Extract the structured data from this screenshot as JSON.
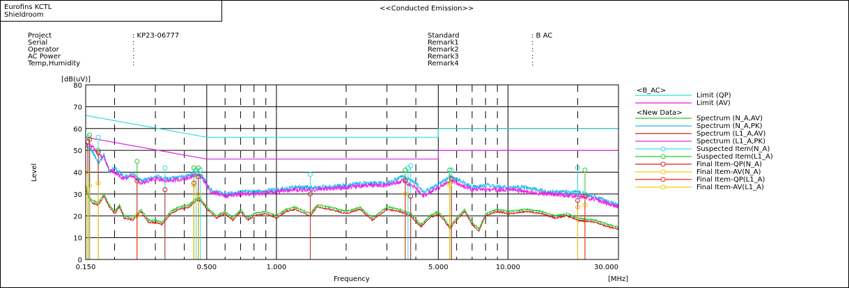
{
  "header": {
    "company": "Eurofins KCTL",
    "room": "Shieldroom",
    "title": "<<Conducted Emission>>"
  },
  "info_left": [
    {
      "label": "Project",
      "value": ": KP23-06777"
    },
    {
      "label": "Serial",
      "value": ":"
    },
    {
      "label": "Operator",
      "value": ":"
    },
    {
      "label": "AC Power",
      "value": ":"
    },
    {
      "label": "Temp,Humidity",
      "value": ":"
    }
  ],
  "info_right": [
    {
      "label": "Standard",
      "value": ": B AC"
    },
    {
      "label": "Remark1",
      "value": ":"
    },
    {
      "label": "Remark2",
      "value": ":"
    },
    {
      "label": "Remark3",
      "value": ":"
    },
    {
      "label": "Remark4",
      "value": ":"
    }
  ],
  "legend": {
    "group1": "<B_AC>",
    "group2": "<New Data>",
    "items": [
      {
        "name": "Limit (QP)",
        "color": "#33dddd",
        "marker": "line"
      },
      {
        "name": "Limit (AV)",
        "color": "#dd22dd",
        "marker": "line"
      },
      {
        "name": "Spectrum (N_A,AV)",
        "color": "#22cc22",
        "marker": "line"
      },
      {
        "name": "Spectrum (N_A,PK)",
        "color": "#22bbee",
        "marker": "line"
      },
      {
        "name": "Spectrum (L1_A,AV)",
        "color": "#cc2222",
        "marker": "line"
      },
      {
        "name": "Spectrum (L1_A,PK)",
        "color": "#ee22ee",
        "marker": "line"
      },
      {
        "name": "Suspected Item(N_A)",
        "color": "#33dddd",
        "marker": "circle"
      },
      {
        "name": "Suspected Item(L1_A)",
        "color": "#22cc22",
        "marker": "circle"
      },
      {
        "name": "Final Item-QP(N_A)",
        "color": "#cc2222",
        "marker": "circle"
      },
      {
        "name": "Final Item-AV(N_A)",
        "color": "#eecc00",
        "marker": "circle"
      },
      {
        "name": "Final Item-QP(L1_A)",
        "color": "#ee2222",
        "marker": "circle"
      },
      {
        "name": "Final Item-AV(L1_A)",
        "color": "#eecc00",
        "marker": "circle"
      }
    ]
  },
  "chart_data": {
    "type": "line",
    "xscale": "log",
    "xlim": [
      0.15,
      30
    ],
    "ylim": [
      0,
      80
    ],
    "xlabel": "Frequency",
    "xunit": "[MHz]",
    "ylabel": "Level",
    "yunit": "[dB(uV)]",
    "x_ticks": [
      {
        "v": 0.15,
        "label": "0.150"
      },
      {
        "v": 0.5,
        "label": "0.500"
      },
      {
        "v": 1,
        "label": "1.000"
      },
      {
        "v": 5,
        "label": "5.000"
      },
      {
        "v": 10,
        "label": "10.000"
      },
      {
        "v": 30,
        "label": "30.000"
      }
    ],
    "y_ticks": [
      0,
      10,
      20,
      30,
      40,
      50,
      60,
      70,
      80
    ],
    "limit_qp": [
      [
        0.15,
        66
      ],
      [
        0.5,
        56
      ],
      [
        5,
        56
      ],
      [
        5,
        60
      ],
      [
        30,
        60
      ]
    ],
    "limit_av": [
      [
        0.15,
        56
      ],
      [
        0.5,
        46
      ],
      [
        5,
        46
      ],
      [
        5,
        50
      ],
      [
        30,
        50
      ]
    ],
    "series": [
      {
        "name": "Spectrum (N_A,PK)",
        "color": "#22bbee",
        "points": [
          [
            0.15,
            52
          ],
          [
            0.16,
            50
          ],
          [
            0.17,
            44
          ],
          [
            0.18,
            48
          ],
          [
            0.19,
            40
          ],
          [
            0.2,
            42
          ],
          [
            0.22,
            38
          ],
          [
            0.24,
            39
          ],
          [
            0.26,
            36
          ],
          [
            0.3,
            38
          ],
          [
            0.35,
            37
          ],
          [
            0.4,
            38
          ],
          [
            0.45,
            40
          ],
          [
            0.48,
            38
          ],
          [
            0.52,
            32
          ],
          [
            0.6,
            30
          ],
          [
            0.7,
            31
          ],
          [
            0.8,
            31
          ],
          [
            1.0,
            32
          ],
          [
            1.2,
            33
          ],
          [
            1.5,
            33
          ],
          [
            2.0,
            34
          ],
          [
            2.5,
            35
          ],
          [
            3.0,
            35
          ],
          [
            3.5,
            38
          ],
          [
            4.0,
            35
          ],
          [
            4.3,
            31
          ],
          [
            5.0,
            34
          ],
          [
            5.6,
            38
          ],
          [
            6.0,
            37
          ],
          [
            7.0,
            33
          ],
          [
            8.0,
            34
          ],
          [
            10,
            33
          ],
          [
            12,
            33
          ],
          [
            15,
            31
          ],
          [
            20,
            31
          ],
          [
            25,
            28
          ],
          [
            30,
            25
          ]
        ]
      },
      {
        "name": "Spectrum (L1_A,PK)",
        "color": "#ee22ee",
        "points": [
          [
            0.15,
            53
          ],
          [
            0.16,
            52
          ],
          [
            0.17,
            48
          ],
          [
            0.18,
            47
          ],
          [
            0.19,
            41
          ],
          [
            0.2,
            40
          ],
          [
            0.22,
            37
          ],
          [
            0.24,
            38
          ],
          [
            0.26,
            35
          ],
          [
            0.3,
            37
          ],
          [
            0.35,
            36
          ],
          [
            0.4,
            37
          ],
          [
            0.45,
            39
          ],
          [
            0.48,
            37
          ],
          [
            0.52,
            31
          ],
          [
            0.6,
            29
          ],
          [
            0.7,
            30
          ],
          [
            0.8,
            30
          ],
          [
            1.0,
            31
          ],
          [
            1.2,
            32
          ],
          [
            1.5,
            32
          ],
          [
            2.0,
            33
          ],
          [
            2.5,
            34
          ],
          [
            3.0,
            34
          ],
          [
            3.5,
            36
          ],
          [
            4.0,
            33
          ],
          [
            4.3,
            29
          ],
          [
            5.0,
            33
          ],
          [
            5.6,
            36
          ],
          [
            6.0,
            35
          ],
          [
            7.0,
            32
          ],
          [
            8.0,
            32
          ],
          [
            10,
            32
          ],
          [
            12,
            31
          ],
          [
            15,
            30
          ],
          [
            20,
            29
          ],
          [
            25,
            27
          ],
          [
            30,
            24
          ]
        ]
      },
      {
        "name": "Spectrum (N_A,AV)",
        "color": "#22cc22",
        "points": [
          [
            0.15,
            34
          ],
          [
            0.155,
            29
          ],
          [
            0.16,
            27
          ],
          [
            0.17,
            26
          ],
          [
            0.18,
            30
          ],
          [
            0.19,
            25
          ],
          [
            0.2,
            22
          ],
          [
            0.21,
            25
          ],
          [
            0.22,
            20
          ],
          [
            0.24,
            19
          ],
          [
            0.26,
            23
          ],
          [
            0.28,
            18
          ],
          [
            0.3,
            18
          ],
          [
            0.32,
            17
          ],
          [
            0.35,
            22
          ],
          [
            0.38,
            24
          ],
          [
            0.42,
            25
          ],
          [
            0.45,
            28
          ],
          [
            0.47,
            28
          ],
          [
            0.5,
            24
          ],
          [
            0.55,
            20
          ],
          [
            0.6,
            22
          ],
          [
            0.65,
            19
          ],
          [
            0.7,
            23
          ],
          [
            0.75,
            19
          ],
          [
            0.8,
            21
          ],
          [
            0.9,
            22
          ],
          [
            1.0,
            20
          ],
          [
            1.1,
            23
          ],
          [
            1.2,
            24
          ],
          [
            1.4,
            21
          ],
          [
            1.5,
            25
          ],
          [
            1.7,
            24
          ],
          [
            2.0,
            22
          ],
          [
            2.3,
            24
          ],
          [
            2.6,
            19
          ],
          [
            3.0,
            24
          ],
          [
            3.4,
            23
          ],
          [
            3.8,
            21
          ],
          [
            4.2,
            16
          ],
          [
            4.6,
            20
          ],
          [
            5.0,
            22
          ],
          [
            5.3,
            19
          ],
          [
            5.6,
            15
          ],
          [
            6.0,
            19
          ],
          [
            6.5,
            23
          ],
          [
            7.0,
            17
          ],
          [
            7.5,
            14
          ],
          [
            8.0,
            21
          ],
          [
            9.0,
            23
          ],
          [
            10,
            22
          ],
          [
            12,
            23
          ],
          [
            14,
            22
          ],
          [
            16,
            20
          ],
          [
            18,
            21
          ],
          [
            20,
            19
          ],
          [
            24,
            18
          ],
          [
            27,
            16
          ],
          [
            30,
            15
          ]
        ]
      },
      {
        "name": "Spectrum (L1_A,AV)",
        "color": "#cc2222",
        "points": [
          [
            0.15,
            32
          ],
          [
            0.155,
            28
          ],
          [
            0.16,
            26
          ],
          [
            0.17,
            25
          ],
          [
            0.18,
            29
          ],
          [
            0.19,
            24
          ],
          [
            0.2,
            21
          ],
          [
            0.21,
            24
          ],
          [
            0.22,
            19
          ],
          [
            0.24,
            18
          ],
          [
            0.26,
            22
          ],
          [
            0.28,
            17
          ],
          [
            0.3,
            17
          ],
          [
            0.32,
            16
          ],
          [
            0.35,
            21
          ],
          [
            0.38,
            23
          ],
          [
            0.42,
            24
          ],
          [
            0.45,
            27
          ],
          [
            0.47,
            27
          ],
          [
            0.5,
            23
          ],
          [
            0.55,
            19
          ],
          [
            0.6,
            21
          ],
          [
            0.65,
            18
          ],
          [
            0.7,
            22
          ],
          [
            0.75,
            18
          ],
          [
            0.8,
            20
          ],
          [
            0.9,
            21
          ],
          [
            1.0,
            19
          ],
          [
            1.1,
            22
          ],
          [
            1.2,
            23
          ],
          [
            1.4,
            20
          ],
          [
            1.5,
            24
          ],
          [
            1.7,
            23
          ],
          [
            2.0,
            21
          ],
          [
            2.3,
            23
          ],
          [
            2.6,
            18
          ],
          [
            3.0,
            23
          ],
          [
            3.4,
            22
          ],
          [
            3.8,
            20
          ],
          [
            4.2,
            15
          ],
          [
            4.6,
            19
          ],
          [
            5.0,
            21
          ],
          [
            5.3,
            18
          ],
          [
            5.6,
            14
          ],
          [
            6.0,
            18
          ],
          [
            6.5,
            22
          ],
          [
            7.0,
            16
          ],
          [
            7.5,
            13
          ],
          [
            8.0,
            20
          ],
          [
            9.0,
            22
          ],
          [
            10,
            21
          ],
          [
            12,
            22
          ],
          [
            14,
            21
          ],
          [
            16,
            19
          ],
          [
            18,
            20
          ],
          [
            20,
            18
          ],
          [
            24,
            17
          ],
          [
            27,
            15
          ],
          [
            30,
            14
          ]
        ]
      }
    ],
    "markers": [
      {
        "name": "Suspected Item(N_A)",
        "color": "#33dddd",
        "points": [
          [
            0.155,
            56
          ],
          [
            0.17,
            56
          ],
          [
            0.33,
            42
          ],
          [
            0.45,
            41
          ],
          [
            0.47,
            41
          ],
          [
            1.4,
            39
          ],
          [
            3.7,
            42
          ],
          [
            3.8,
            43
          ],
          [
            5.7,
            41
          ],
          [
            20,
            42
          ]
        ]
      },
      {
        "name": "Suspected Item(L1_A)",
        "color": "#22cc22",
        "points": [
          [
            0.156,
            57
          ],
          [
            0.17,
            50
          ],
          [
            0.25,
            45
          ],
          [
            0.44,
            42
          ],
          [
            0.46,
            42
          ],
          [
            3.6,
            41
          ],
          [
            5.6,
            41
          ],
          [
            21.5,
            41
          ]
        ]
      },
      {
        "name": "Final Item-QP(N_A)",
        "color": "#cc2222",
        "points": [
          [
            0.153,
            54
          ],
          [
            0.17,
            49
          ],
          [
            0.33,
            32
          ],
          [
            0.46,
            38
          ],
          [
            1.4,
            30
          ],
          [
            3.8,
            29
          ],
          [
            5.7,
            37
          ],
          [
            20,
            27
          ]
        ]
      },
      {
        "name": "Final Item-AV(N_A)",
        "color": "#eecc00",
        "points": [
          [
            0.153,
            40
          ],
          [
            0.17,
            35
          ],
          [
            0.25,
            20
          ],
          [
            0.46,
            30
          ],
          [
            3.6,
            30
          ],
          [
            5.6,
            35
          ],
          [
            21.5,
            25
          ]
        ]
      },
      {
        "name": "Final Item-QP(L1_A)",
        "color": "#ee2222",
        "points": [
          [
            0.156,
            55
          ],
          [
            0.25,
            36
          ],
          [
            0.44,
            35
          ],
          [
            3.6,
            36
          ],
          [
            21.5,
            29
          ]
        ]
      },
      {
        "name": "Final Item-AV(L1_A)",
        "color": "#eecc00",
        "points": [
          [
            0.156,
            34
          ],
          [
            0.44,
            34
          ],
          [
            5.6,
            34
          ],
          [
            20,
            24
          ]
        ]
      }
    ]
  }
}
